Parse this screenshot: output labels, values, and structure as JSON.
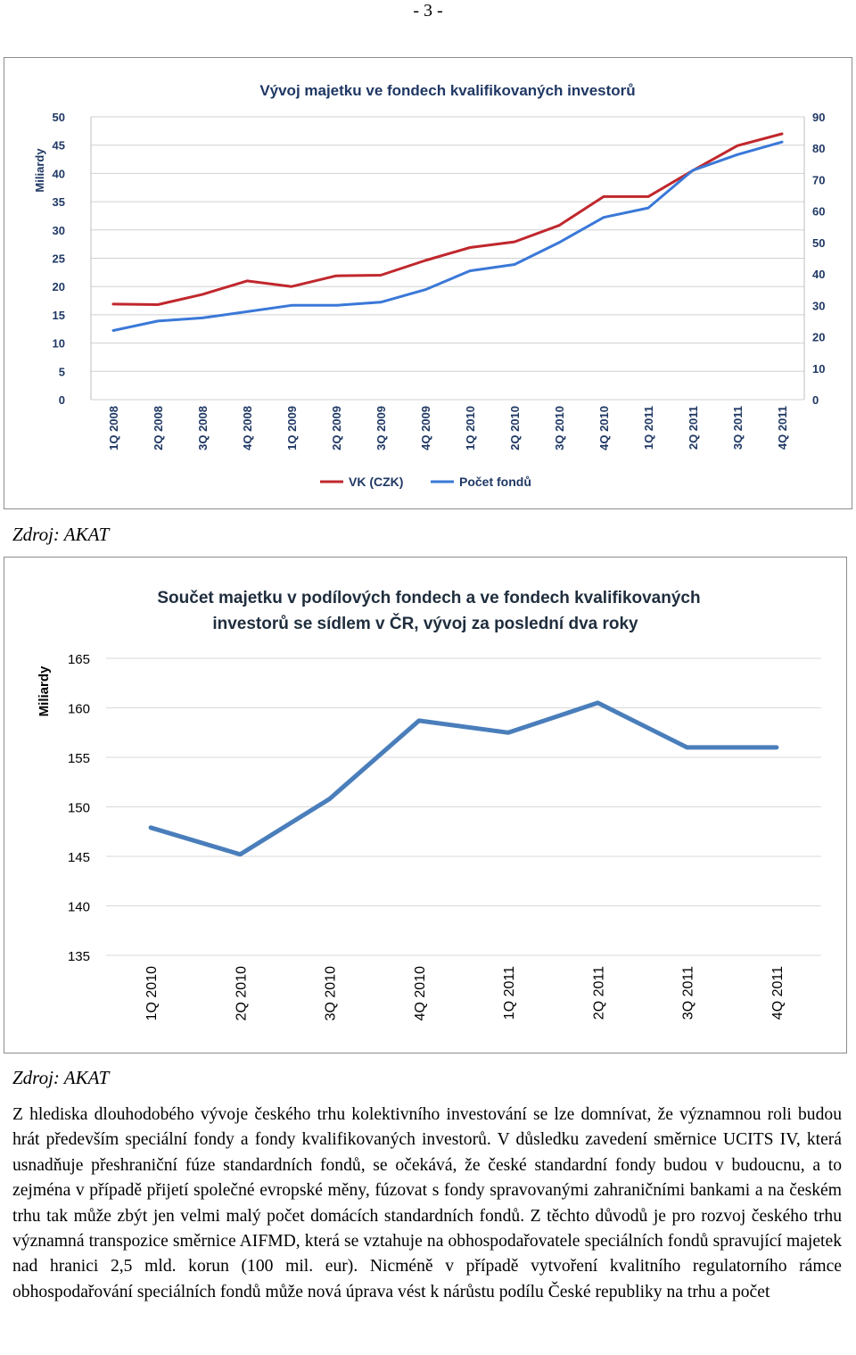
{
  "page": {
    "number": "- 3 -"
  },
  "chart_data": [
    {
      "type": "line",
      "title": "Vývoj majetku ve fondech kvalifikovaných investorů",
      "ylabel": "Miliardy",
      "ylim": [
        0,
        50
      ],
      "yticks": [
        "0",
        "5",
        "10",
        "15",
        "20",
        "25",
        "30",
        "35",
        "40",
        "45",
        "50"
      ],
      "y2lim": [
        0,
        90
      ],
      "y2ticks": [
        "0",
        "10",
        "20",
        "30",
        "40",
        "50",
        "60",
        "70",
        "80",
        "90"
      ],
      "categories": [
        "1Q 2008",
        "2Q 2008",
        "3Q 2008",
        "4Q 2008",
        "1Q 2009",
        "2Q 2009",
        "3Q 2009",
        "4Q 2009",
        "1Q 2010",
        "2Q 2010",
        "3Q 2010",
        "4Q 2010",
        "1Q 2011",
        "2Q 2011",
        "3Q 2011",
        "4Q 2011"
      ],
      "series": [
        {
          "name": "VK (CZK)",
          "axis": "left",
          "color": "#c0272d",
          "values": [
            16.9,
            16.8,
            18.6,
            21.0,
            20.0,
            21.9,
            22.0,
            24.6,
            26.9,
            27.9,
            30.8,
            35.9,
            35.9,
            40.5,
            44.9,
            47.0
          ]
        },
        {
          "name": "Počet fondů",
          "axis": "right",
          "color": "#3a78d8",
          "values": [
            22,
            25,
            26,
            28,
            30,
            30,
            31,
            35,
            41,
            43,
            50,
            58,
            61,
            73,
            78,
            82
          ]
        }
      ],
      "legend": "bottom",
      "grid": true
    },
    {
      "type": "line",
      "title": "Součet majetku v podílových fondech a ve fondech kvalifikovaných investorů se sídlem v ČR, vývoj za poslední dva roky",
      "title_lines": [
        "Součet majetku v podílových fondech a ve fondech kvalifikovaných",
        "investorů se sídlem v ČR, vývoj za poslední dva roky"
      ],
      "ylabel": "Miliardy",
      "ylim": [
        135,
        165
      ],
      "yticks": [
        "135",
        "140",
        "145",
        "150",
        "155",
        "160",
        "165"
      ],
      "categories": [
        "1Q 2010",
        "2Q 2010",
        "3Q 2010",
        "4Q 2010",
        "1Q 2011",
        "2Q 2011",
        "3Q 2011",
        "4Q 2011"
      ],
      "series": [
        {
          "color": "#4a7ebb",
          "values": [
            147.9,
            145.2,
            150.8,
            158.7,
            157.5,
            160.5,
            156.0,
            156.0
          ]
        }
      ],
      "grid": true
    }
  ],
  "sources": [
    "Zdroj: AKAT",
    "Zdroj: AKAT"
  ],
  "body_text": "Z hlediska dlouhodobého vývoje českého trhu kolektivního investování se lze domnívat, že významnou roli budou hrát především speciální fondy a fondy kvalifikovaných investorů. V důsledku zavedení směrnice UCITS IV, která usnadňuje přeshraniční fúze standardních fondů, se očekává, že české standardní fondy budou v budoucnu, a to zejména v případě přijetí společné evropské měny, fúzovat s fondy spravovanými zahraničními bankami a na českém trhu tak může zbýt jen velmi malý počet domácích standardních fondů. Z těchto důvodů je pro rozvoj českého trhu významná transpozice směrnice AIFMD, která se vztahuje na obhospodařovatele speciálních fondů spravující majetek nad hranici 2,5 mld. korun (100 mil. eur). Nicméně v případě vytvoření kvalitního regulatorního rámce obhospodařování speciálních fondů může nová úprava vést k nárůstu podílu České republiky na trhu a počet"
}
